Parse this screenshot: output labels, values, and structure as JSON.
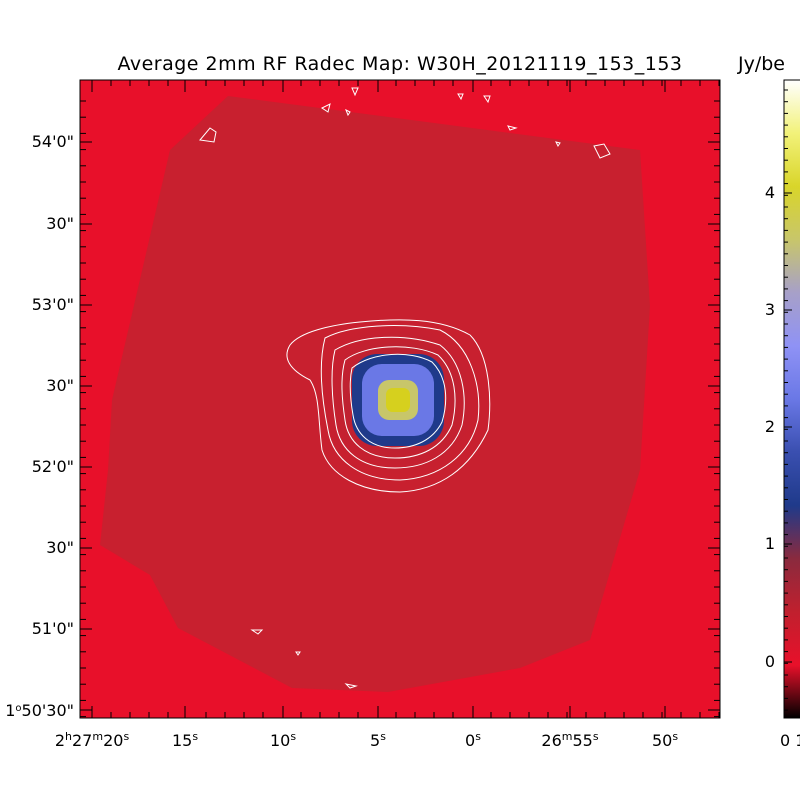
{
  "title": "Average 2mm RF Radec Map: W30H_20121119_153_153",
  "colorbar": {
    "unit_label": "Jy/be",
    "ticks": [
      "4",
      "3",
      "2",
      "1",
      "0"
    ],
    "bottom_label": "0 1",
    "stops": [
      "#000000",
      "#e8102a",
      "#c0202e",
      "#8a2a3e",
      "#1f3a8a",
      "#3a4fb0",
      "#6a78e6",
      "#8f92f5",
      "#a7a0c8",
      "#c8c66a",
      "#d9d52a",
      "#f2f27a",
      "#ffffff"
    ]
  },
  "axes": {
    "ra_ticks": [
      {
        "h": "2",
        "m": "27",
        "s": "20"
      },
      {
        "s": "15"
      },
      {
        "s": "10"
      },
      {
        "s": "5"
      },
      {
        "s": "0"
      },
      {
        "m": "26",
        "s": "55"
      },
      {
        "s": "50"
      }
    ],
    "dec_ticks": [
      "54'0\"",
      "30\"",
      "53'0\"",
      "30\"",
      "52'0\"",
      "30\"",
      "51'0\""
    ],
    "dec_bottom": {
      "deg": "1",
      "rest": "50'30\""
    }
  },
  "map": {
    "background_color": "#e8102a",
    "field_color": "#c8202f",
    "contour_color": "#ffffff",
    "source_colors": [
      "#1f3a8a",
      "#6a78e6",
      "#c8c66a",
      "#d6d01e"
    ]
  }
}
